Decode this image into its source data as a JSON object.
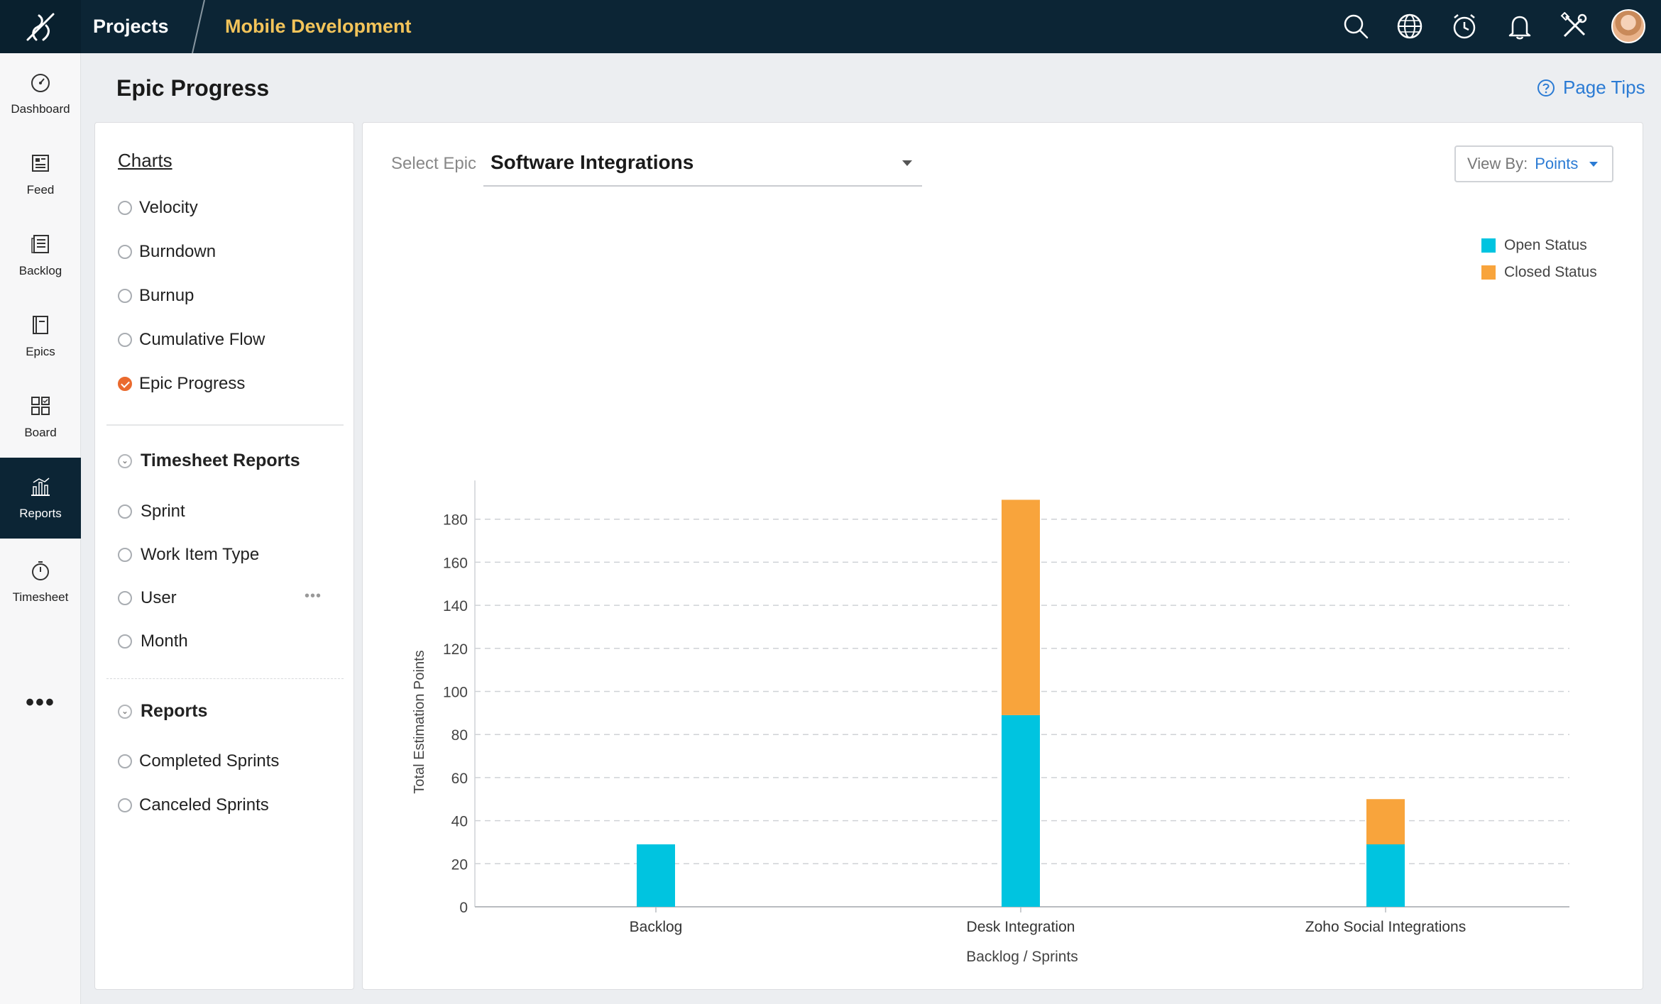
{
  "header": {
    "projects_label": "Projects",
    "project_name": "Mobile Development",
    "icons": [
      "search-icon",
      "globe-icon",
      "alarm-clock-icon",
      "bell-icon",
      "tools-icon"
    ]
  },
  "leftnav": {
    "items": [
      {
        "label": "Dashboard",
        "icon": "speedometer-icon"
      },
      {
        "label": "Feed",
        "icon": "feed-icon"
      },
      {
        "label": "Backlog",
        "icon": "backlog-icon"
      },
      {
        "label": "Epics",
        "icon": "epics-icon"
      },
      {
        "label": "Board",
        "icon": "board-icon"
      },
      {
        "label": "Reports",
        "icon": "reports-icon",
        "active": true
      },
      {
        "label": "Timesheet",
        "icon": "stopwatch-icon"
      }
    ],
    "more": "•••"
  },
  "page": {
    "title": "Epic Progress",
    "tips_label": "Page Tips"
  },
  "sidebar": {
    "charts_title": "Charts",
    "charts": [
      {
        "label": "Velocity",
        "checked": false
      },
      {
        "label": "Burndown",
        "checked": false
      },
      {
        "label": "Burnup",
        "checked": false
      },
      {
        "label": "Cumulative Flow",
        "checked": false
      },
      {
        "label": "Epic Progress",
        "checked": true
      }
    ],
    "timesheet_title": "Timesheet Reports",
    "timesheet": [
      {
        "label": "Sprint"
      },
      {
        "label": "Work Item Type"
      },
      {
        "label": "User"
      },
      {
        "label": "Month"
      }
    ],
    "reports_title": "Reports",
    "reports": [
      {
        "label": "Completed Sprints"
      },
      {
        "label": "Canceled Sprints"
      }
    ],
    "more_dots": "•••"
  },
  "main": {
    "select_label": "Select Epic",
    "select_value": "Software Integrations",
    "viewby_label": "View By:",
    "viewby_value": "Points"
  },
  "colors": {
    "open": "#00c4e0",
    "closed": "#f8a43c",
    "accent": "#2b7bd4",
    "topbar": "#0c2535",
    "project_name": "#f3c45a"
  },
  "chart_data": {
    "type": "bar",
    "stacked": true,
    "categories": [
      "Backlog",
      "Desk Integration",
      "Zoho Social Integrations"
    ],
    "series": [
      {
        "name": "Open Status",
        "values": [
          29,
          89,
          29
        ]
      },
      {
        "name": "Closed Status",
        "values": [
          0,
          100,
          21
        ]
      }
    ],
    "xlabel": "Backlog / Sprints",
    "ylabel": "Total Estimation Points",
    "ylim": [
      0,
      198
    ],
    "yticks": [
      0,
      20,
      40,
      60,
      80,
      100,
      120,
      140,
      160,
      180
    ],
    "grid": true,
    "legend": "top-right"
  }
}
